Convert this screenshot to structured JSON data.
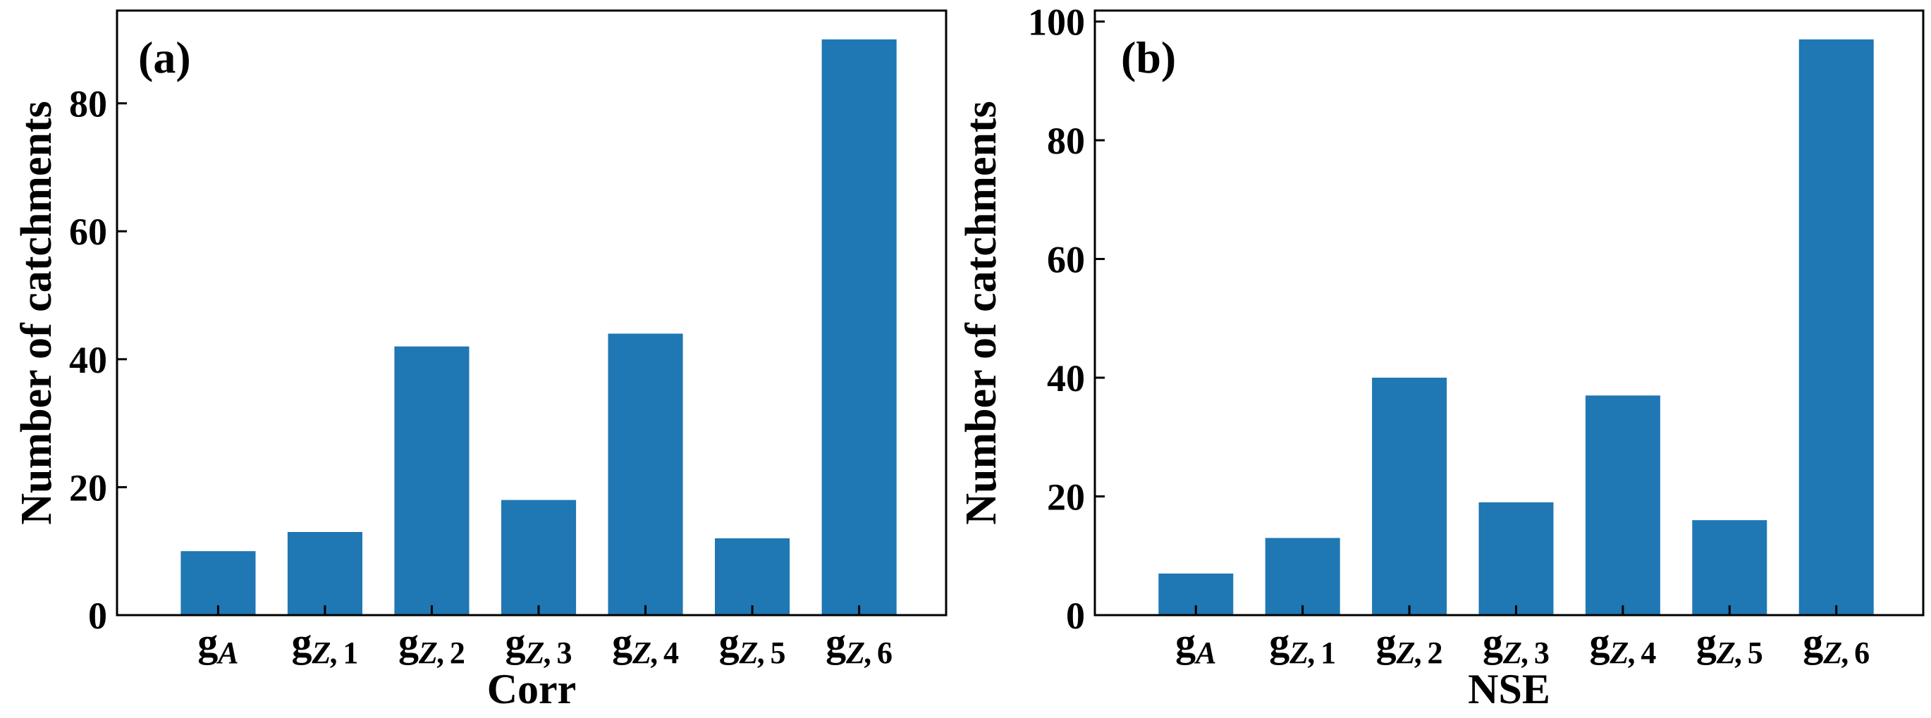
{
  "bar_color": "#1f77b4",
  "chart_data": [
    {
      "type": "bar",
      "panel_label": "(a)",
      "title": "",
      "xlabel": "Corr",
      "ylabel": "Number of catchments",
      "categories": [
        {
          "base": "g",
          "sub": "A",
          "num": ""
        },
        {
          "base": "g",
          "sub": "Z,",
          "num": "1"
        },
        {
          "base": "g",
          "sub": "Z,",
          "num": "2"
        },
        {
          "base": "g",
          "sub": "Z,",
          "num": "3"
        },
        {
          "base": "g",
          "sub": "Z,",
          "num": "4"
        },
        {
          "base": "g",
          "sub": "Z,",
          "num": "5"
        },
        {
          "base": "g",
          "sub": "Z,",
          "num": "6"
        }
      ],
      "values": [
        10,
        13,
        42,
        18,
        44,
        12,
        90
      ],
      "ylim": [
        0,
        94.5
      ],
      "yticks": [
        0,
        20,
        40,
        60,
        80
      ],
      "grid": false
    },
    {
      "type": "bar",
      "panel_label": "(b)",
      "title": "",
      "xlabel": "NSE",
      "ylabel": "Number of catchments",
      "categories": [
        {
          "base": "g",
          "sub": "A",
          "num": ""
        },
        {
          "base": "g",
          "sub": "Z,",
          "num": "1"
        },
        {
          "base": "g",
          "sub": "Z,",
          "num": "2"
        },
        {
          "base": "g",
          "sub": "Z,",
          "num": "3"
        },
        {
          "base": "g",
          "sub": "Z,",
          "num": "4"
        },
        {
          "base": "g",
          "sub": "Z,",
          "num": "5"
        },
        {
          "base": "g",
          "sub": "Z,",
          "num": "6"
        }
      ],
      "values": [
        7,
        13,
        40,
        19,
        37,
        16,
        97
      ],
      "ylim": [
        0,
        101.85
      ],
      "yticks": [
        0,
        20,
        40,
        60,
        80,
        100
      ],
      "grid": false
    }
  ]
}
